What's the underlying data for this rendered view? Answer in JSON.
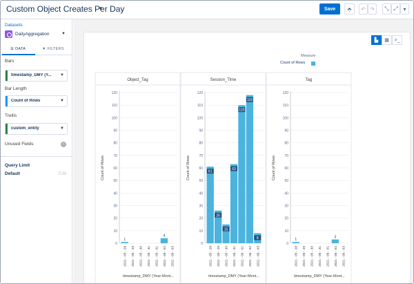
{
  "header": {
    "title": "Custom Object Creates Per Day",
    "save_label": "Save",
    "icons": [
      "clone-icon",
      "undo-icon",
      "redo-icon",
      "collapse-icon",
      "fullscreen-icon",
      "more-icon"
    ]
  },
  "sidebar": {
    "datasets_label": "Datasets",
    "dataset_name": "DailyAggregation",
    "tabs": [
      {
        "label": "DATA",
        "icon": "list-icon"
      },
      {
        "label": "FILTERS",
        "icon": "filter-icon"
      }
    ],
    "bars_label": "Bars",
    "bars_field": "timestamp_DMY (Y...",
    "bar_length_label": "Bar Length",
    "bar_length_field": "Count of Rows",
    "trellis_label": "Trellis",
    "trellis_field": "custom_entity",
    "unused_label": "Unused Fields",
    "query_limit_label": "Query Limit",
    "default_label": "Default",
    "edit_label": "Edit",
    "colors": {
      "dimension": "#2e844a",
      "measure": "#1b96ff",
      "dataset": "#8c58e3"
    }
  },
  "view_toggles": [
    "chart-icon",
    "table-icon",
    "query-icon"
  ],
  "legend": {
    "title": "Measure",
    "item": "Count of Rows",
    "color": "#4ab3de"
  },
  "chart_data": {
    "type": "bar",
    "y_label": "Count of Rows",
    "x_label": "timestamp_DMY (Year-Mont...",
    "ylim": [
      0,
      120
    ],
    "y_ticks": [
      0,
      10,
      20,
      30,
      40,
      50,
      60,
      70,
      80,
      90,
      100,
      110,
      120
    ],
    "categories": [
      "2021 - 05 - 28",
      "2021 - 05 - 29",
      "2021 - 05 - 30",
      "2021 - 05 - 31",
      "2021 - 06 - 01",
      "2021 - 06 - 02",
      "2021 - 06 - 03"
    ],
    "panels": [
      {
        "name": "Object_Tag",
        "values": [
          1,
          null,
          null,
          null,
          null,
          4,
          null
        ]
      },
      {
        "name": "Session_Time",
        "values": [
          61,
          26,
          15,
          63,
          110,
          118,
          8
        ]
      },
      {
        "name": "Tag",
        "values": [
          1,
          null,
          null,
          null,
          null,
          3,
          null
        ]
      }
    ],
    "bar_color": "#4ab3de",
    "grid": true
  }
}
